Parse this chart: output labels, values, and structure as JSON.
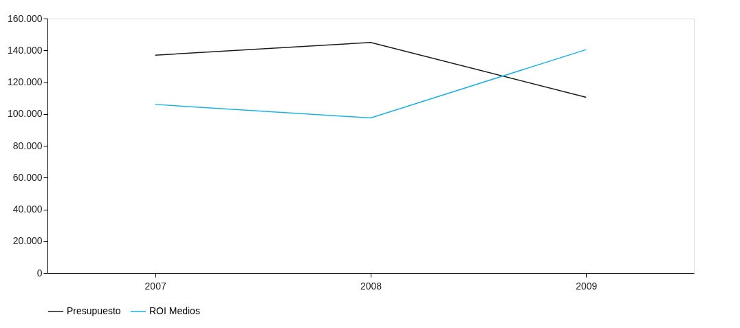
{
  "chart_data": {
    "type": "line",
    "categories": [
      "2007",
      "2008",
      "2009"
    ],
    "series": [
      {
        "name": "Presupuesto",
        "color": "#1a1a1a",
        "values": [
          137000,
          145000,
          110500
        ]
      },
      {
        "name": "ROI Medios",
        "color": "#1ab0e6",
        "values": [
          106000,
          97500,
          140500
        ]
      }
    ],
    "ylim": [
      0,
      160000
    ],
    "yticks": [
      {
        "value": 0,
        "label": "0"
      },
      {
        "value": 20000,
        "label": "20.000"
      },
      {
        "value": 40000,
        "label": "40.000"
      },
      {
        "value": 60000,
        "label": "60.000"
      },
      {
        "value": 80000,
        "label": "80.000"
      },
      {
        "value": 100000,
        "label": "100.000"
      },
      {
        "value": 120000,
        "label": "120.000"
      },
      {
        "value": 140000,
        "label": "140.000"
      },
      {
        "value": 160000,
        "label": "160.000"
      }
    ],
    "grid": false,
    "legend": "bottom left",
    "marker": "none",
    "line_style": "solid"
  }
}
